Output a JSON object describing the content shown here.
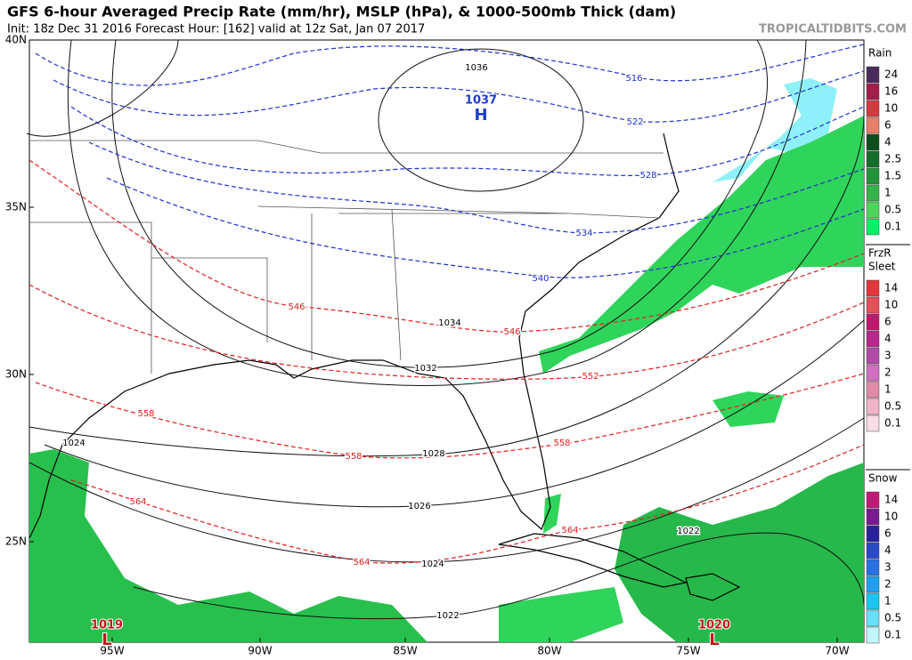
{
  "header": {
    "title": "GFS 6-hour Averaged Precip Rate (mm/hr), MSLP (hPa), & 1000-500mb Thick (dam)",
    "init": "Init: 18z Dec 31 2016   Forecast Hour: [162]   valid at 12z Sat, Jan 07 2017",
    "watermark": "TROPICALTIDBITS.COM"
  },
  "axes": {
    "lat_labels": [
      "40N",
      "35N",
      "30N",
      "25N"
    ],
    "lon_labels": [
      "95W",
      "90W",
      "85W",
      "80W",
      "75W",
      "70W"
    ]
  },
  "legends": [
    {
      "titles": [
        "Rain"
      ],
      "labels": [
        "24",
        "16",
        "10",
        "6",
        "4",
        "2.5",
        "1.5",
        "1",
        "0.5",
        "0.1"
      ],
      "colors": [
        "#4a2b5c",
        "#a31c4c",
        "#d23a40",
        "#e6806a",
        "#0e4d1e",
        "#176d2b",
        "#24913b",
        "#36b24a",
        "#4fd35b",
        "#00f06a"
      ]
    },
    {
      "titles": [
        "FrzR",
        "Sleet"
      ],
      "labels": [
        "14",
        "10",
        "6",
        "4",
        "3",
        "2",
        "1",
        "0.5",
        "0.1"
      ],
      "colors": [
        "#e4343c",
        "#e4505a",
        "#c0186c",
        "#b8288a",
        "#b04ca8",
        "#d070c0",
        "#e08ca6",
        "#f0b4c8",
        "#fadce6"
      ]
    },
    {
      "titles": [
        "Snow"
      ],
      "labels": [
        "14",
        "10",
        "6",
        "4",
        "3",
        "2",
        "1",
        "0.5",
        "0.1"
      ],
      "colors": [
        "#c01a78",
        "#7a1a90",
        "#28229a",
        "#2a48c8",
        "#2a70e0",
        "#1ea0f0",
        "#18c8f0",
        "#6ae0f8",
        "#c4f4fc"
      ]
    }
  ],
  "map": {
    "isobar_labels": [
      "1036",
      "1034",
      "1032",
      "1028",
      "1026",
      "1024",
      "1024",
      "1022",
      "1022"
    ],
    "thickness_labels": [
      "516",
      "522",
      "528",
      "534",
      "540",
      "546",
      "546",
      "552",
      "558",
      "558",
      "558",
      "564",
      "564",
      "564"
    ],
    "centers": [
      {
        "pressure": "1037",
        "symbol": "H"
      },
      {
        "pressure": "1019",
        "symbol": "L"
      },
      {
        "pressure": "1020",
        "symbol": "L"
      }
    ]
  }
}
